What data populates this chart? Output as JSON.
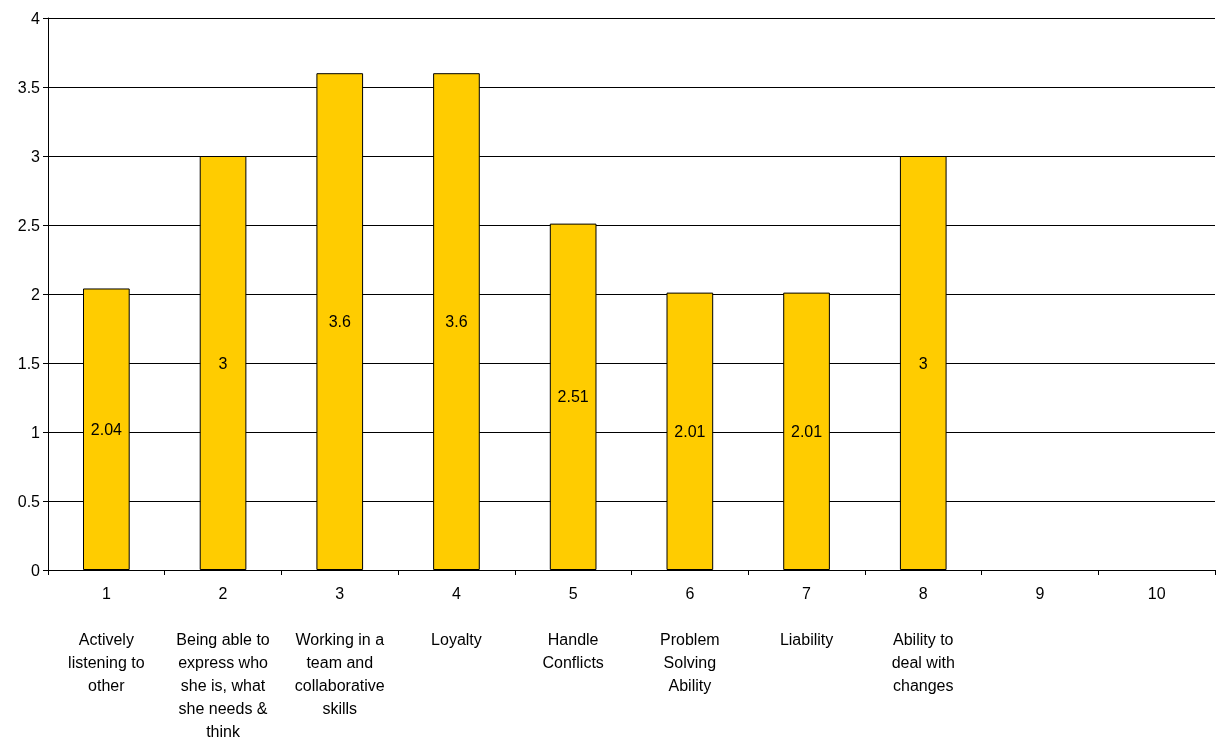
{
  "chart_data": {
    "type": "bar",
    "categories": [
      "1\nActively listening to other",
      "2\nBeing able to express who she is, what she needs & think",
      "3\nWorking in a team and collaborative skills",
      "4\nLoyalty",
      "5\nHandle Conflicts",
      "6\nProblem Solving Ability",
      "7\nLiability",
      "8\nAbility to deal with changes",
      "9",
      "10"
    ],
    "values": [
      2.04,
      3,
      3.6,
      3.6,
      2.51,
      2.01,
      2.01,
      3,
      null,
      null
    ],
    "color": "#ffcc00",
    "ylim": [
      0,
      4
    ],
    "yticks": [
      0,
      0.5,
      1,
      1.5,
      2,
      2.5,
      3,
      3.5,
      4
    ],
    "grid": "y",
    "data_labels": true
  }
}
